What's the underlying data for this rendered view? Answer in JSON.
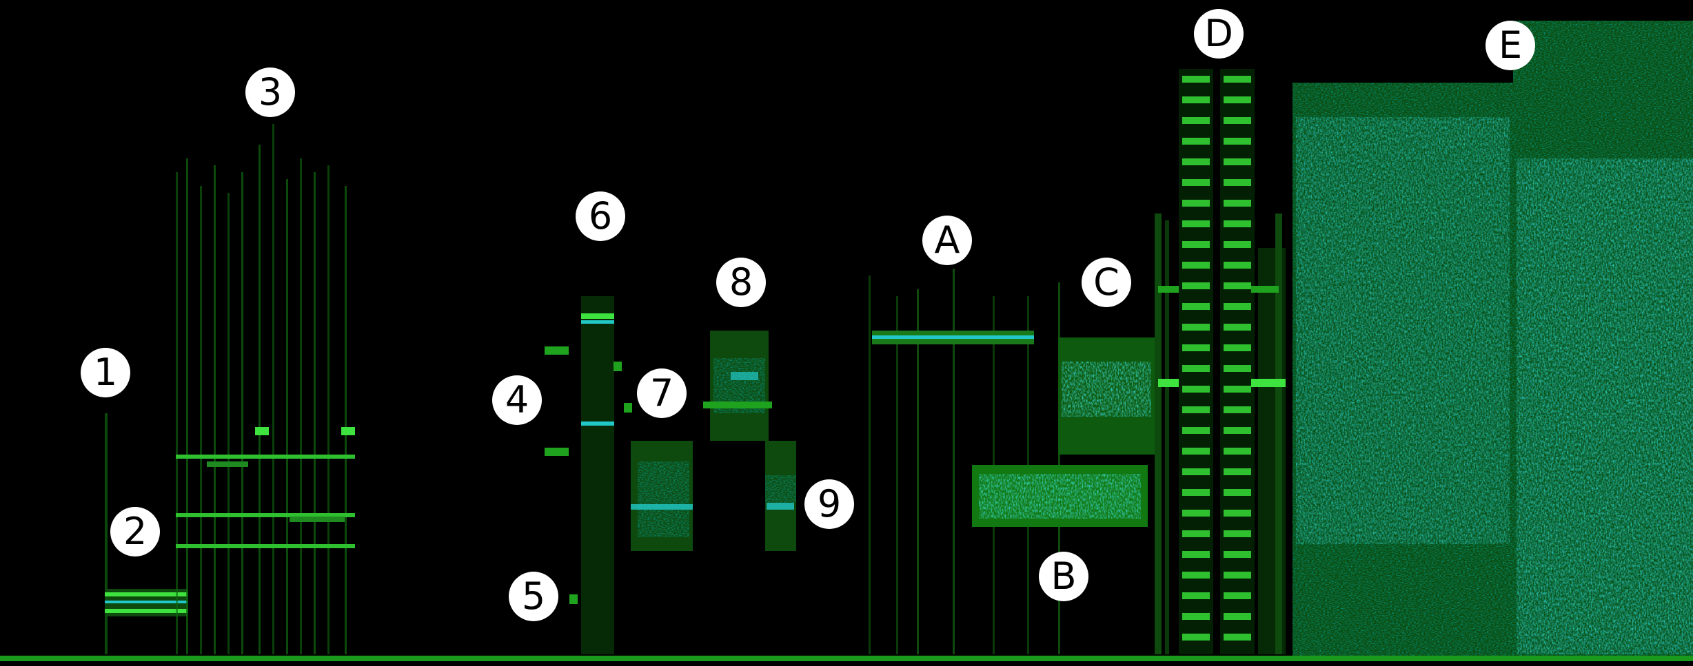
{
  "image": {
    "kind": "spectrogram",
    "palette": {
      "background": "#000000",
      "signal": "#1fa31f",
      "bright": "#3fe33f",
      "peak": "#22c8c8"
    }
  },
  "markers": {
    "m1": "1",
    "m2": "2",
    "m3": "3",
    "m4": "4",
    "m5": "5",
    "m6": "6",
    "m7": "7",
    "m8": "8",
    "m9": "9",
    "mA": "A",
    "mB": "B",
    "mC": "C",
    "mD": "D",
    "mE": "E"
  }
}
